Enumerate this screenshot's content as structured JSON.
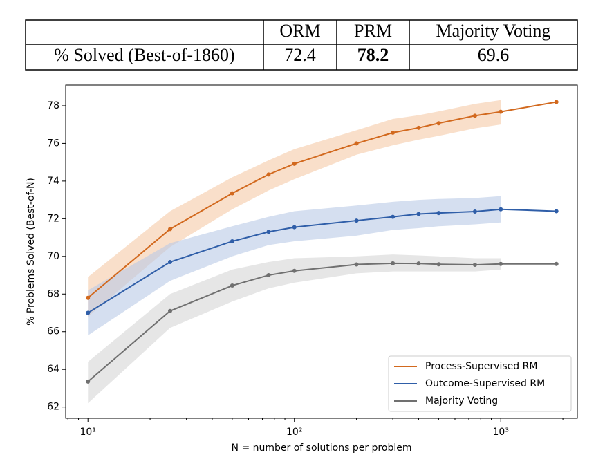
{
  "table": {
    "columns": [
      "ORM",
      "PRM",
      "Majority Voting"
    ],
    "rows": [
      {
        "label": "% Solved (Best-of-1860)",
        "values": [
          72.4,
          78.2,
          69.6
        ]
      }
    ],
    "bold_column": 1
  },
  "chart_data": {
    "type": "line",
    "x_label": "N = number of solutions per problem",
    "y_label": "% Problems Solved (Best-of-N)",
    "x": [
      10,
      25,
      50,
      75,
      100,
      200,
      300,
      400,
      500,
      750,
      1000,
      1860
    ],
    "log_x": true,
    "xlim": [
      7.8,
      2350
    ],
    "ylim": [
      61.4,
      79.1
    ],
    "xticks": [
      {
        "value": 10,
        "label": "10¹"
      },
      {
        "value": 100,
        "label": "10²"
      },
      {
        "value": 1000,
        "label": "10³"
      }
    ],
    "x_minor_ticks": [
      8,
      9,
      20,
      30,
      40,
      50,
      60,
      70,
      80,
      90,
      200,
      300,
      400,
      500,
      600,
      700,
      800,
      900,
      2000
    ],
    "yticks": [
      62,
      64,
      66,
      68,
      70,
      72,
      74,
      76,
      78
    ],
    "legend": "lower right",
    "series": [
      {
        "name": "Process-Supervised RM",
        "color": "#d2691e",
        "band_color": "#f5c9a6",
        "values": [
          67.8,
          71.45,
          73.35,
          74.35,
          74.92,
          76.0,
          76.57,
          76.83,
          77.07,
          77.47,
          77.68,
          78.2
        ],
        "lower": [
          66.8,
          70.5,
          72.5,
          73.5,
          74.1,
          75.4,
          75.9,
          76.2,
          76.4,
          76.8,
          77.0,
          null
        ],
        "upper": [
          68.9,
          72.4,
          74.2,
          75.1,
          75.7,
          76.7,
          77.3,
          77.5,
          77.7,
          78.1,
          78.3,
          null
        ]
      },
      {
        "name": "Outcome-Supervised RM",
        "color": "#2f5ea8",
        "band_color": "#b9c9e6",
        "values": [
          67.0,
          69.7,
          70.8,
          71.3,
          71.55,
          71.9,
          72.1,
          72.25,
          72.3,
          72.38,
          72.5,
          72.4
        ],
        "lower": [
          65.8,
          68.7,
          70.0,
          70.6,
          70.8,
          71.1,
          71.4,
          71.5,
          71.6,
          71.7,
          71.8,
          null
        ],
        "upper": [
          68.2,
          70.7,
          71.6,
          72.1,
          72.4,
          72.7,
          72.9,
          73.0,
          73.05,
          73.1,
          73.2,
          null
        ]
      },
      {
        "name": "Majority Voting",
        "color": "#707070",
        "band_color": "#d6d6d6",
        "values": [
          63.35,
          67.1,
          68.45,
          69.0,
          69.23,
          69.57,
          69.63,
          69.62,
          69.58,
          69.55,
          69.6,
          69.6
        ],
        "lower": [
          62.2,
          66.2,
          67.6,
          68.3,
          68.6,
          69.1,
          69.2,
          69.2,
          69.2,
          69.2,
          69.3,
          null
        ],
        "upper": [
          64.4,
          68.0,
          69.3,
          69.7,
          69.9,
          70.0,
          70.1,
          70.05,
          70.0,
          69.9,
          69.9,
          null
        ]
      }
    ]
  }
}
